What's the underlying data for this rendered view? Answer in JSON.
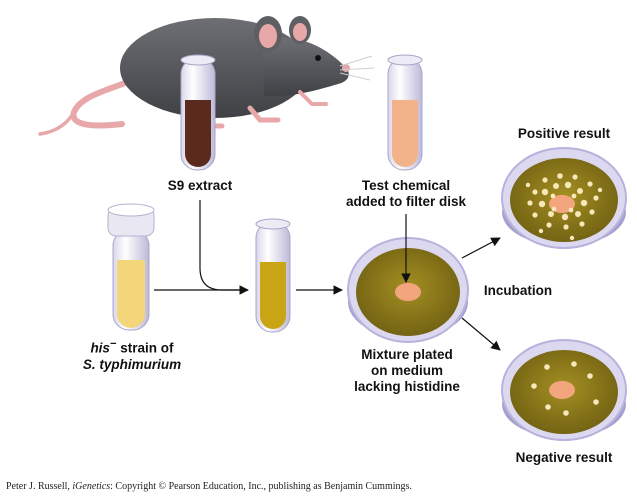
{
  "labels": {
    "s9_extract": "S9 extract",
    "test_chemical_line1": "Test chemical",
    "test_chemical_line2": "added to filter disk",
    "positive_result": "Positive result",
    "incubation": "Incubation",
    "negative_result": "Negative result",
    "strain_his": "his",
    "strain_superscript": "−",
    "strain_suffix": " strain of",
    "strain_species": "S. typhimurium",
    "mixture_line1": "Mixture plated",
    "mixture_line2": "on medium",
    "mixture_line3": "lacking histidine"
  },
  "credit": {
    "author": "Peter J. Russell, ",
    "book": "iGenetics",
    "rest": ": Copyright © Pearson Education, Inc., publishing as Benjamin Cummings."
  },
  "colors": {
    "mouse_body": "#5d5f63",
    "mouse_pink": "#e8a7a9",
    "s9_liquid": "#5a2a1c",
    "test_liquid": "#f2b38a",
    "strain_liquid": "#f3d57a",
    "mixture_liquid": "#c9a414",
    "agar": "#8f7c1c",
    "filter_disk": "#f3a57e",
    "colony": "#f6e8b8",
    "dish_rim": "#c9c3e6"
  }
}
